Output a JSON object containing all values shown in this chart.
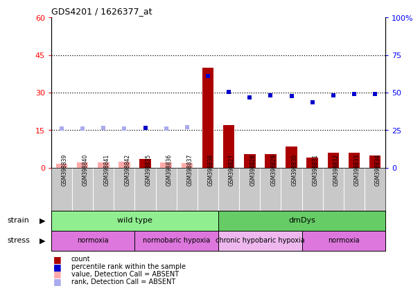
{
  "title": "GDS4201 / 1626377_at",
  "samples": [
    "GSM398839",
    "GSM398840",
    "GSM398841",
    "GSM398842",
    "GSM398835",
    "GSM398836",
    "GSM398837",
    "GSM398838",
    "GSM398827",
    "GSM398828",
    "GSM398829",
    "GSM398830",
    "GSM398831",
    "GSM398832",
    "GSM398833",
    "GSM398834"
  ],
  "count_values": [
    1.5,
    2.2,
    2.2,
    2.5,
    3.5,
    2.0,
    1.8,
    40.0,
    17.0,
    5.5,
    5.5,
    8.5,
    4.0,
    6.0,
    6.0,
    5.0
  ],
  "count_absent": [
    true,
    true,
    true,
    true,
    false,
    true,
    true,
    false,
    false,
    false,
    false,
    false,
    false,
    false,
    false,
    false
  ],
  "rank_values": [
    26.0,
    26.0,
    26.5,
    26.0,
    26.5,
    26.0,
    27.0,
    61.0,
    50.5,
    47.0,
    48.0,
    47.5,
    43.5,
    48.0,
    49.0,
    49.0
  ],
  "rank_absent": [
    true,
    true,
    true,
    true,
    false,
    true,
    true,
    false,
    false,
    false,
    false,
    false,
    false,
    false,
    false,
    false
  ],
  "left_ylim": [
    0,
    60
  ],
  "right_ylim": [
    0,
    100
  ],
  "left_yticks": [
    0,
    15,
    30,
    45,
    60
  ],
  "right_yticks": [
    0,
    25,
    50,
    75,
    100
  ],
  "left_tick_labels": [
    "0",
    "15",
    "30",
    "45",
    "60"
  ],
  "right_tick_labels": [
    "0",
    "25",
    "50",
    "75",
    "100%"
  ],
  "strain_groups": [
    {
      "label": "wild type",
      "start": 0,
      "end": 7,
      "color": "#90EE90"
    },
    {
      "label": "dmDys",
      "start": 8,
      "end": 15,
      "color": "#66CC66"
    }
  ],
  "stress_groups": [
    {
      "label": "normoxia",
      "start": 0,
      "end": 3,
      "color": "#DD77DD"
    },
    {
      "label": "normobaric hypoxia",
      "start": 4,
      "end": 7,
      "color": "#DD77DD"
    },
    {
      "label": "chronic hypobaric hypoxia",
      "start": 8,
      "end": 11,
      "color": "#EEB8EE"
    },
    {
      "label": "normoxia",
      "start": 12,
      "end": 15,
      "color": "#DD77DD"
    }
  ],
  "bar_color_present": "#AA0000",
  "bar_color_absent": "#FFAAAA",
  "rank_color_present": "#0000CC",
  "rank_color_absent": "#AAAAEE",
  "bg_color": "#C8C8C8",
  "dotted_lines": [
    15,
    30,
    45
  ]
}
